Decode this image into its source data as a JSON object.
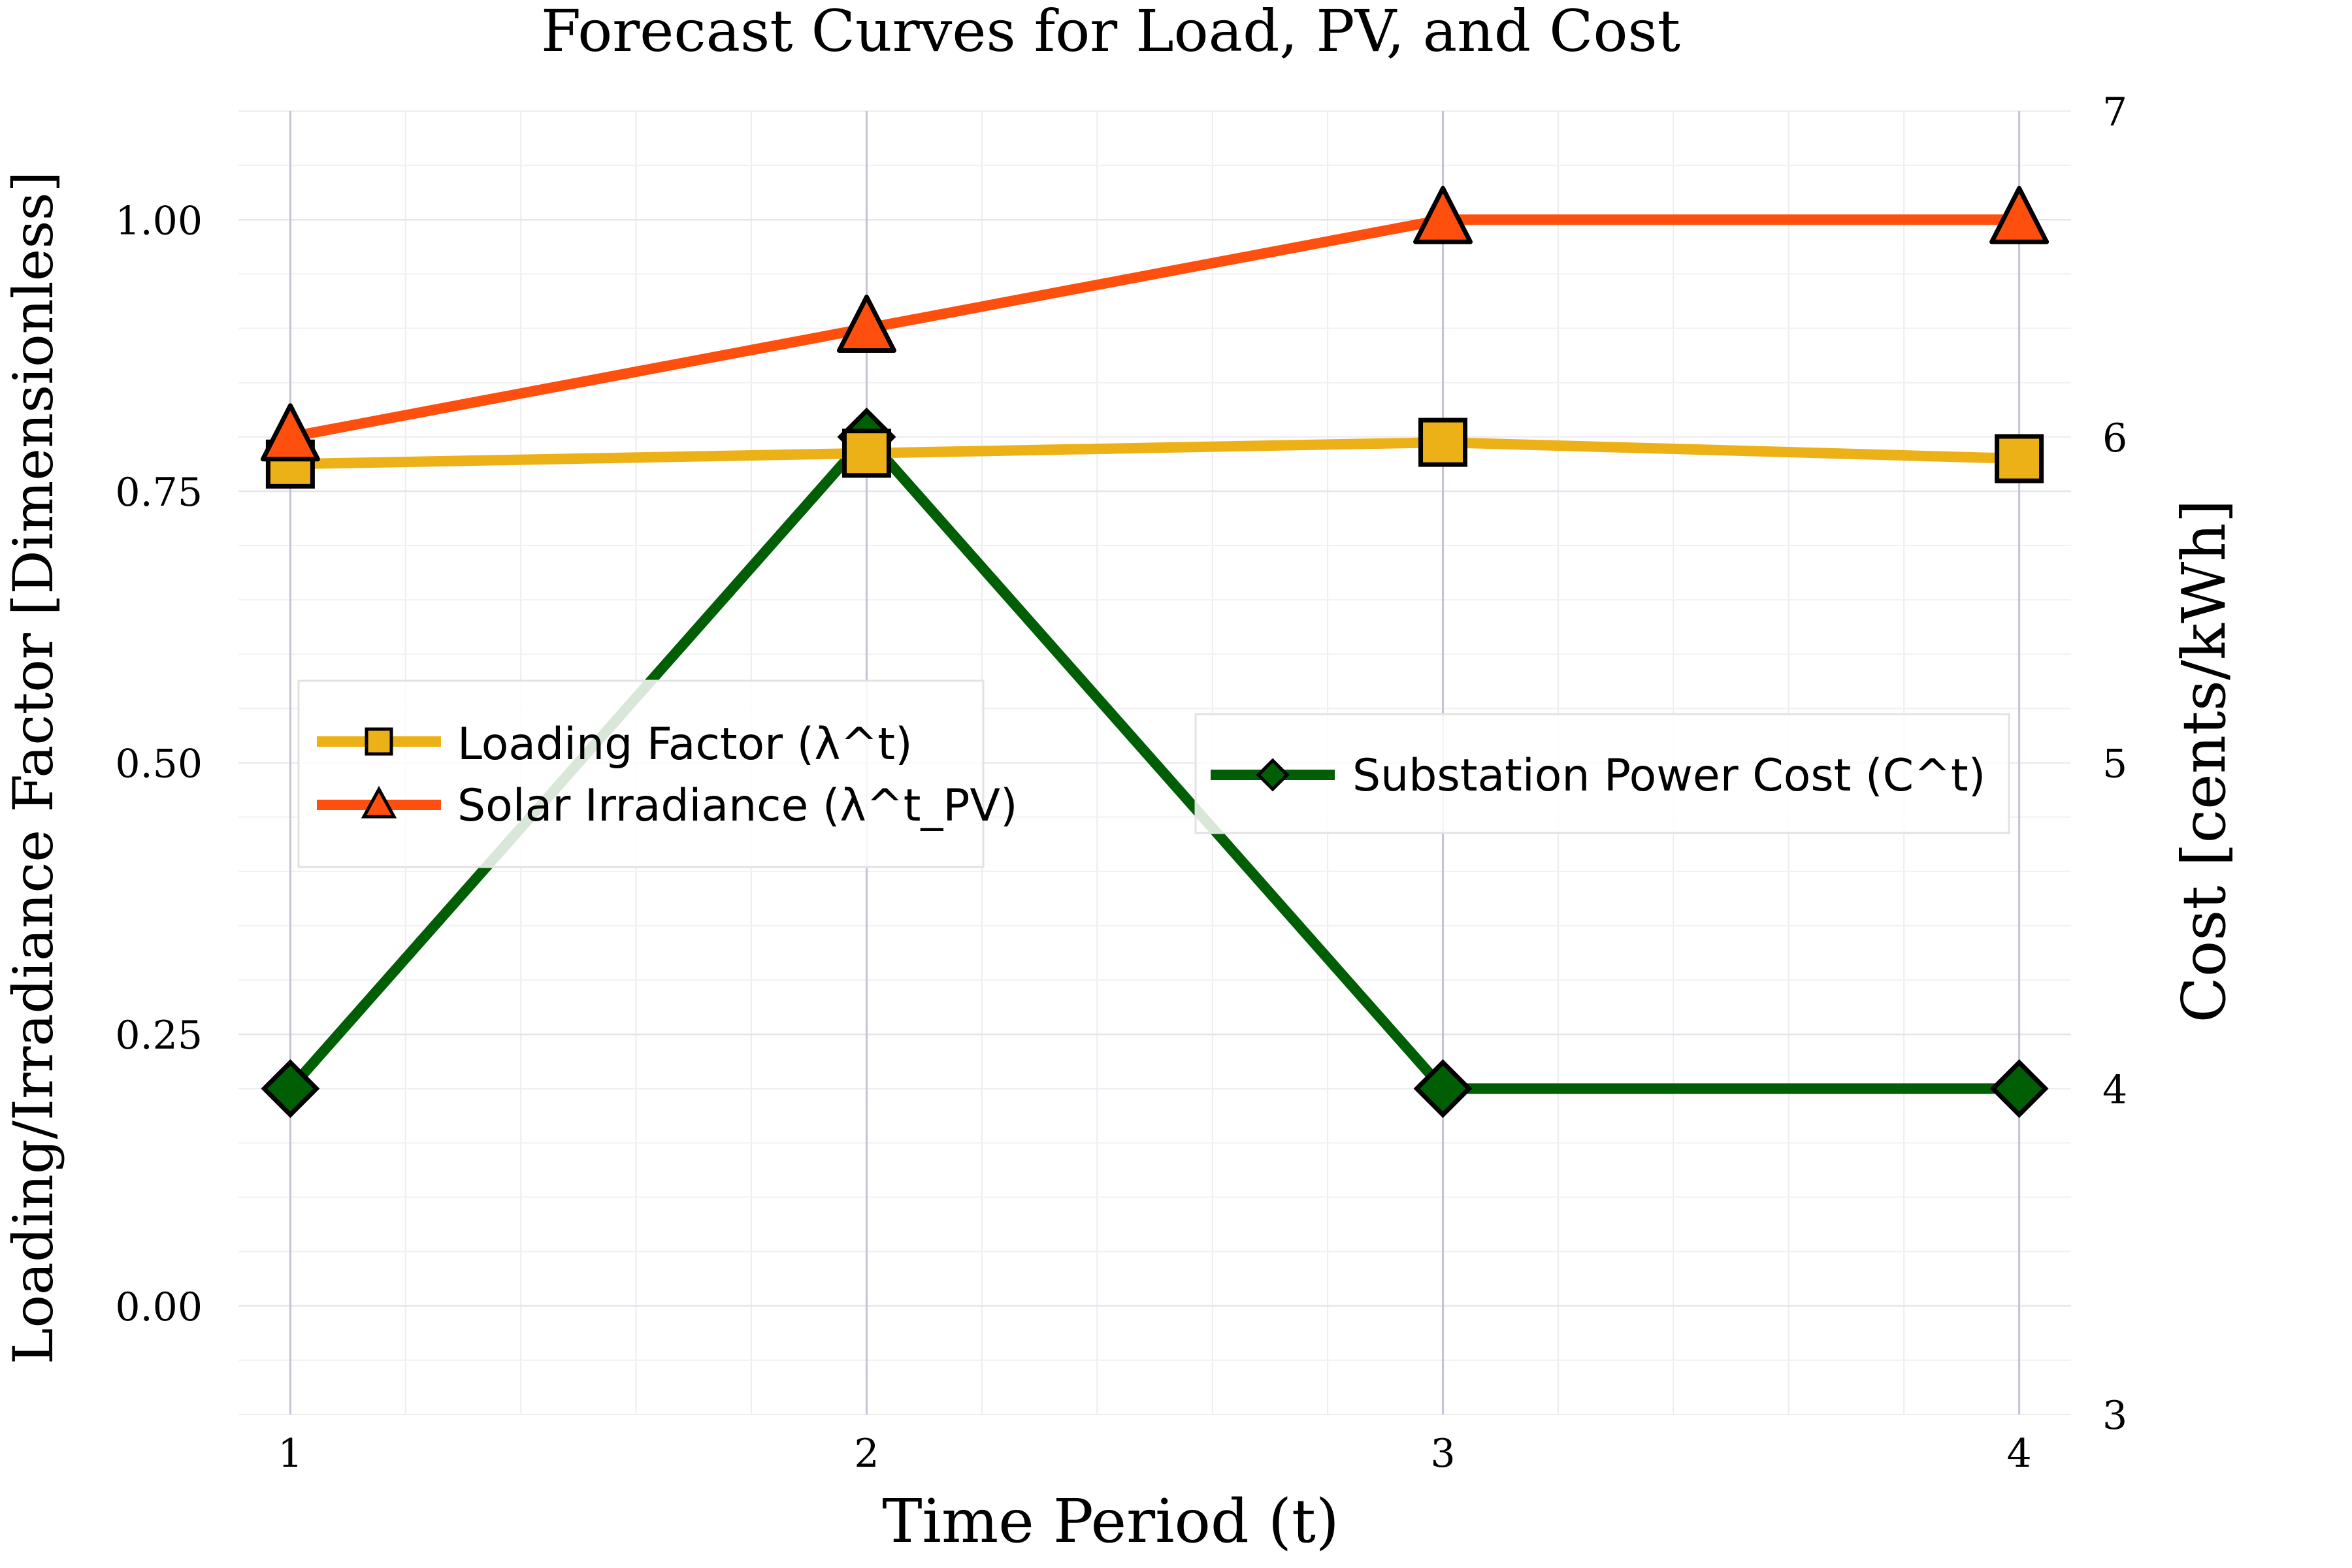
{
  "chart_data": {
    "type": "line",
    "title": "Forecast Curves for Load, PV, and Cost",
    "xlabel": "Time Period (t)",
    "ylabel_left": "Loading/Irradiance Factor [Dimensionless]",
    "ylabel_right": "Cost [cents/kWh]",
    "x": [
      1,
      2,
      3,
      4
    ],
    "x_ticks": [
      "1",
      "2",
      "3",
      "4"
    ],
    "xlim": [
      0.91,
      4.09
    ],
    "ylim_left": [
      -0.1,
      1.1
    ],
    "y_ticks_left": [
      "0.00",
      "0.25",
      "0.50",
      "0.75",
      "1.00"
    ],
    "ylim_right": [
      3,
      7
    ],
    "y_ticks_right": [
      "3",
      "4",
      "5",
      "6",
      "7"
    ],
    "grid": true,
    "series": [
      {
        "name": "Loading Factor (λ^t)",
        "axis": "left",
        "values": [
          0.775,
          0.785,
          0.795,
          0.78
        ],
        "color": "#EDB118",
        "marker": "square"
      },
      {
        "name": "Solar Irradiance (λ^t_PV)",
        "axis": "left",
        "values": [
          0.8,
          0.9,
          1.0,
          1.0
        ],
        "color": "#FF4F0E",
        "marker": "triangle"
      },
      {
        "name": "Substation Power Cost (C^t)",
        "axis": "right",
        "values": [
          4,
          6,
          4,
          4
        ],
        "color": "#005E04",
        "marker": "diamond"
      }
    ],
    "legends": [
      "left-middle",
      "right-middle"
    ]
  }
}
